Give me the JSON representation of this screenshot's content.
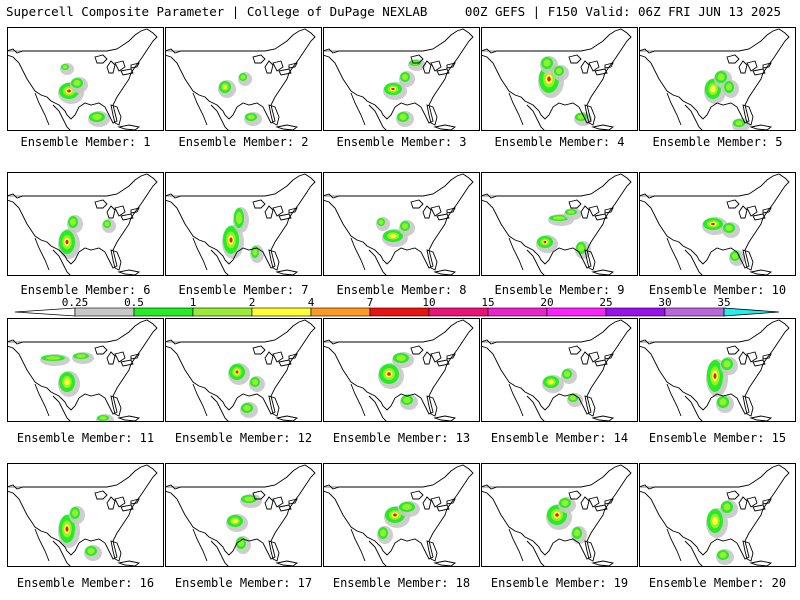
{
  "header": {
    "left": "Supercell Composite Parameter | College of DuPage NEXLAB",
    "right": "00Z GEFS | F150 Valid: 06Z FRI JUN 13 2025"
  },
  "panels": [
    {
      "caption": "Ensemble Member: 1"
    },
    {
      "caption": "Ensemble Member: 2"
    },
    {
      "caption": "Ensemble Member: 3"
    },
    {
      "caption": "Ensemble Member: 4"
    },
    {
      "caption": "Ensemble Member: 5"
    },
    {
      "caption": "Ensemble Member: 6"
    },
    {
      "caption": "Ensemble Member: 7"
    },
    {
      "caption": "Ensemble Member: 8"
    },
    {
      "caption": "Ensemble Member: 9"
    },
    {
      "caption": "Ensemble Member: 10"
    },
    {
      "caption": "Ensemble Member: 11"
    },
    {
      "caption": "Ensemble Member: 12"
    },
    {
      "caption": "Ensemble Member: 13"
    },
    {
      "caption": "Ensemble Member: 14"
    },
    {
      "caption": "Ensemble Member: 15"
    },
    {
      "caption": "Ensemble Member: 16"
    },
    {
      "caption": "Ensemble Member: 17"
    },
    {
      "caption": "Ensemble Member: 18"
    },
    {
      "caption": "Ensemble Member: 19"
    },
    {
      "caption": "Ensemble Member: 20"
    }
  ],
  "colorbar": {
    "labels": [
      "0.25",
      "0.5",
      "1",
      "2",
      "4",
      "7",
      "10",
      "15",
      "20",
      "25",
      "30",
      "35"
    ],
    "colors": [
      "#ffffff",
      "#c8c8c8",
      "#22ee22",
      "#99ee33",
      "#ffff33",
      "#ff9922",
      "#ee1111",
      "#ee1177",
      "#ee22cc",
      "#ff22ff",
      "#9911ee",
      "#bb66dd",
      "#22eeee"
    ]
  },
  "colors": {
    "background": "#ffffff",
    "coastline": "#000000",
    "border": "#000000"
  }
}
